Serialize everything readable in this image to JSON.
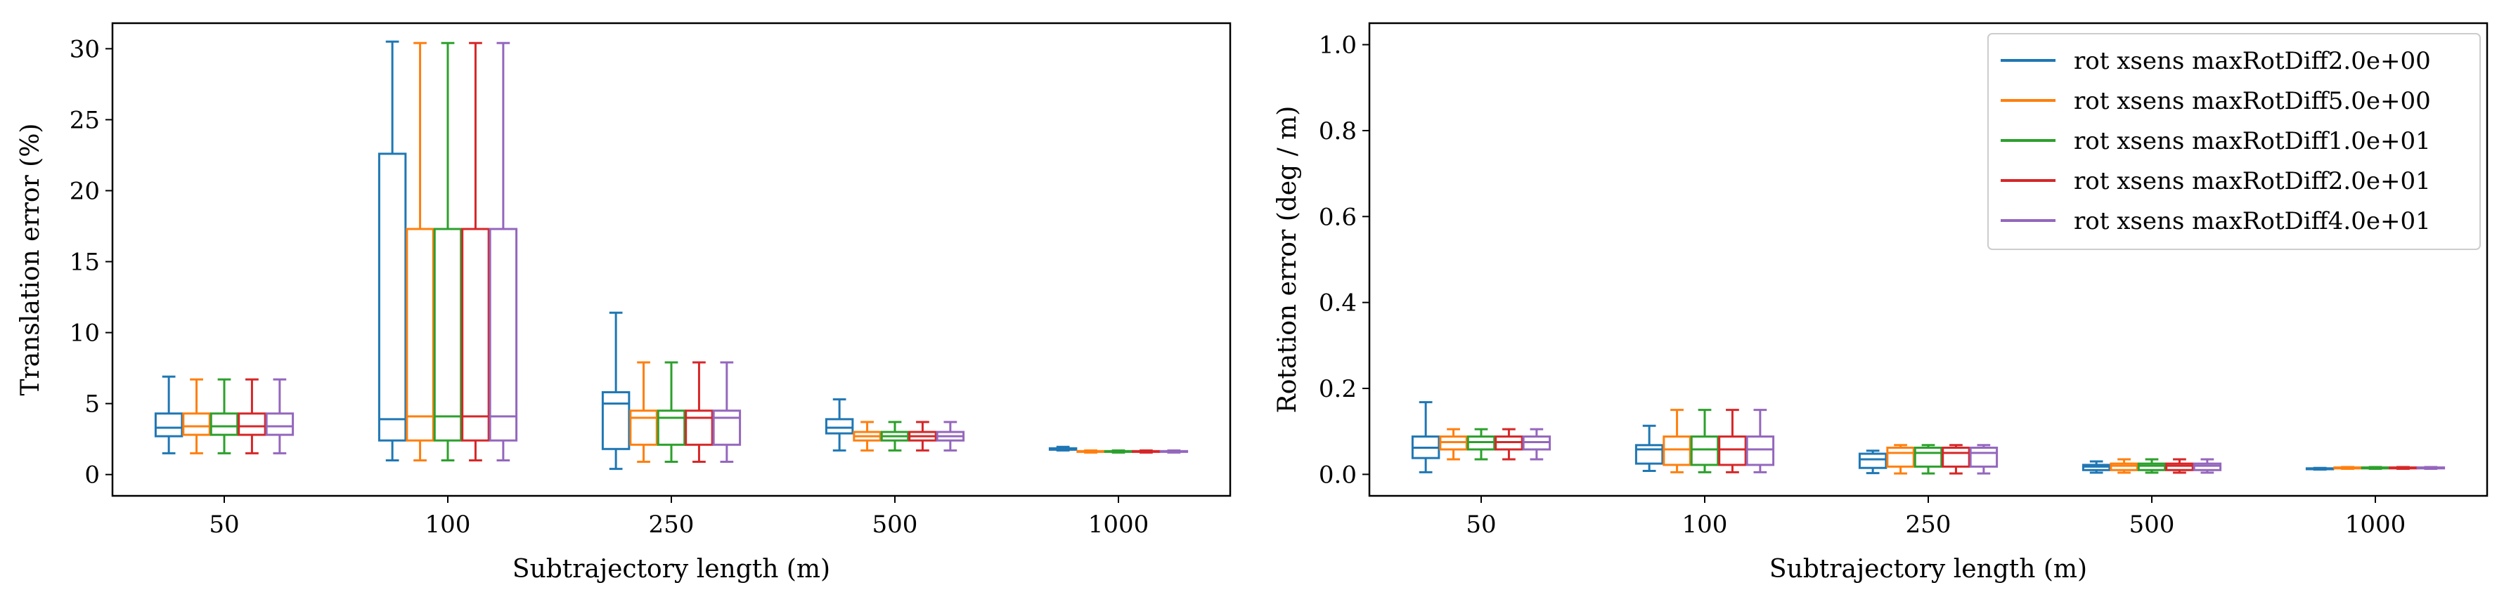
{
  "chart_data": [
    {
      "type": "box",
      "xlabel": "Subtrajectory length (m)",
      "ylabel": "Translation error (%)",
      "ylim": [
        -1.5,
        31.8
      ],
      "yticks": [
        0,
        5,
        10,
        15,
        20,
        25,
        30
      ],
      "categories": [
        "50",
        "100",
        "250",
        "500",
        "1000"
      ],
      "grid": false,
      "series": [
        {
          "name": "rot xsens maxRotDiff2.0e+00",
          "color": "#1f77b4",
          "boxes": [
            {
              "whislo": 1.5,
              "q1": 2.7,
              "med": 3.3,
              "q3": 4.3,
              "whishi": 6.9
            },
            {
              "whislo": 1.0,
              "q1": 2.4,
              "med": 3.9,
              "q3": 22.6,
              "whishi": 30.5
            },
            {
              "whislo": 0.4,
              "q1": 1.8,
              "med": 5.0,
              "q3": 5.8,
              "whishi": 11.4
            },
            {
              "whislo": 1.7,
              "q1": 2.9,
              "med": 3.3,
              "q3": 3.9,
              "whishi": 5.3
            },
            {
              "whislo": 1.7,
              "q1": 1.75,
              "med": 1.8,
              "q3": 1.85,
              "whishi": 1.95
            }
          ]
        },
        {
          "name": "rot xsens maxRotDiff5.0e+00",
          "color": "#ff7f0e",
          "boxes": [
            {
              "whislo": 1.5,
              "q1": 2.8,
              "med": 3.4,
              "q3": 4.3,
              "whishi": 6.7
            },
            {
              "whislo": 1.0,
              "q1": 2.4,
              "med": 4.1,
              "q3": 17.3,
              "whishi": 30.4
            },
            {
              "whislo": 0.9,
              "q1": 2.1,
              "med": 4.0,
              "q3": 4.5,
              "whishi": 7.9
            },
            {
              "whislo": 1.7,
              "q1": 2.4,
              "med": 2.7,
              "q3": 3.0,
              "whishi": 3.7
            },
            {
              "whislo": 1.55,
              "q1": 1.6,
              "med": 1.62,
              "q3": 1.65,
              "whishi": 1.7
            }
          ]
        },
        {
          "name": "rot xsens maxRotDiff1.0e+01",
          "color": "#2ca02c",
          "boxes": [
            {
              "whislo": 1.5,
              "q1": 2.8,
              "med": 3.4,
              "q3": 4.3,
              "whishi": 6.7
            },
            {
              "whislo": 1.0,
              "q1": 2.4,
              "med": 4.1,
              "q3": 17.3,
              "whishi": 30.4
            },
            {
              "whislo": 0.9,
              "q1": 2.1,
              "med": 4.0,
              "q3": 4.5,
              "whishi": 7.9
            },
            {
              "whislo": 1.7,
              "q1": 2.4,
              "med": 2.7,
              "q3": 3.0,
              "whishi": 3.7
            },
            {
              "whislo": 1.55,
              "q1": 1.6,
              "med": 1.62,
              "q3": 1.65,
              "whishi": 1.7
            }
          ]
        },
        {
          "name": "rot xsens maxRotDiff2.0e+01",
          "color": "#d62728",
          "boxes": [
            {
              "whislo": 1.5,
              "q1": 2.8,
              "med": 3.4,
              "q3": 4.3,
              "whishi": 6.7
            },
            {
              "whislo": 1.0,
              "q1": 2.4,
              "med": 4.1,
              "q3": 17.3,
              "whishi": 30.4
            },
            {
              "whislo": 0.9,
              "q1": 2.1,
              "med": 4.0,
              "q3": 4.5,
              "whishi": 7.9
            },
            {
              "whislo": 1.7,
              "q1": 2.4,
              "med": 2.7,
              "q3": 3.0,
              "whishi": 3.7
            },
            {
              "whislo": 1.55,
              "q1": 1.6,
              "med": 1.62,
              "q3": 1.65,
              "whishi": 1.7
            }
          ]
        },
        {
          "name": "rot xsens maxRotDiff4.0e+01",
          "color": "#9467bd",
          "boxes": [
            {
              "whislo": 1.5,
              "q1": 2.8,
              "med": 3.4,
              "q3": 4.3,
              "whishi": 6.7
            },
            {
              "whislo": 1.0,
              "q1": 2.4,
              "med": 4.1,
              "q3": 17.3,
              "whishi": 30.4
            },
            {
              "whislo": 0.9,
              "q1": 2.1,
              "med": 4.0,
              "q3": 4.5,
              "whishi": 7.9
            },
            {
              "whislo": 1.7,
              "q1": 2.4,
              "med": 2.7,
              "q3": 3.0,
              "whishi": 3.7
            },
            {
              "whislo": 1.55,
              "q1": 1.6,
              "med": 1.62,
              "q3": 1.65,
              "whishi": 1.7
            }
          ]
        }
      ]
    },
    {
      "type": "box",
      "xlabel": "Subtrajectory length (m)",
      "ylabel": "Rotation error (deg / m)",
      "ylim": [
        -0.05,
        1.05
      ],
      "yticks": [
        0.0,
        0.2,
        0.4,
        0.6,
        0.8,
        1.0
      ],
      "ytick_labels": [
        "0.0",
        "0.2",
        "0.4",
        "0.6",
        "0.8",
        "1.0"
      ],
      "categories": [
        "50",
        "100",
        "250",
        "500",
        "1000"
      ],
      "grid": false,
      "legend_position": "top-right",
      "series": [
        {
          "name": "rot xsens maxRotDiff2.0e+00",
          "color": "#1f77b4",
          "boxes": [
            {
              "whislo": 0.005,
              "q1": 0.038,
              "med": 0.062,
              "q3": 0.088,
              "whishi": 0.168
            },
            {
              "whislo": 0.008,
              "q1": 0.025,
              "med": 0.058,
              "q3": 0.068,
              "whishi": 0.113
            },
            {
              "whislo": 0.003,
              "q1": 0.015,
              "med": 0.035,
              "q3": 0.048,
              "whishi": 0.055
            },
            {
              "whislo": 0.004,
              "q1": 0.01,
              "med": 0.018,
              "q3": 0.022,
              "whishi": 0.03
            },
            {
              "whislo": 0.011,
              "q1": 0.012,
              "med": 0.013,
              "q3": 0.014,
              "whishi": 0.015
            }
          ]
        },
        {
          "name": "rot xsens maxRotDiff5.0e+00",
          "color": "#ff7f0e",
          "boxes": [
            {
              "whislo": 0.035,
              "q1": 0.058,
              "med": 0.075,
              "q3": 0.088,
              "whishi": 0.105
            },
            {
              "whislo": 0.005,
              "q1": 0.022,
              "med": 0.058,
              "q3": 0.088,
              "whishi": 0.15
            },
            {
              "whislo": 0.002,
              "q1": 0.018,
              "med": 0.05,
              "q3": 0.062,
              "whishi": 0.068
            },
            {
              "whislo": 0.004,
              "q1": 0.01,
              "med": 0.02,
              "q3": 0.025,
              "whishi": 0.035
            },
            {
              "whislo": 0.013,
              "q1": 0.014,
              "med": 0.015,
              "q3": 0.016,
              "whishi": 0.017
            }
          ]
        },
        {
          "name": "rot xsens maxRotDiff1.0e+01",
          "color": "#2ca02c",
          "boxes": [
            {
              "whislo": 0.035,
              "q1": 0.058,
              "med": 0.075,
              "q3": 0.088,
              "whishi": 0.105
            },
            {
              "whislo": 0.005,
              "q1": 0.022,
              "med": 0.058,
              "q3": 0.088,
              "whishi": 0.15
            },
            {
              "whislo": 0.002,
              "q1": 0.018,
              "med": 0.05,
              "q3": 0.062,
              "whishi": 0.068
            },
            {
              "whislo": 0.004,
              "q1": 0.01,
              "med": 0.02,
              "q3": 0.025,
              "whishi": 0.035
            },
            {
              "whislo": 0.013,
              "q1": 0.014,
              "med": 0.015,
              "q3": 0.016,
              "whishi": 0.017
            }
          ]
        },
        {
          "name": "rot xsens maxRotDiff2.0e+01",
          "color": "#d62728",
          "boxes": [
            {
              "whislo": 0.035,
              "q1": 0.058,
              "med": 0.075,
              "q3": 0.088,
              "whishi": 0.105
            },
            {
              "whislo": 0.005,
              "q1": 0.022,
              "med": 0.058,
              "q3": 0.088,
              "whishi": 0.15
            },
            {
              "whislo": 0.002,
              "q1": 0.018,
              "med": 0.05,
              "q3": 0.062,
              "whishi": 0.068
            },
            {
              "whislo": 0.004,
              "q1": 0.01,
              "med": 0.02,
              "q3": 0.025,
              "whishi": 0.035
            },
            {
              "whislo": 0.013,
              "q1": 0.014,
              "med": 0.015,
              "q3": 0.016,
              "whishi": 0.017
            }
          ]
        },
        {
          "name": "rot xsens maxRotDiff4.0e+01",
          "color": "#9467bd",
          "boxes": [
            {
              "whislo": 0.035,
              "q1": 0.058,
              "med": 0.075,
              "q3": 0.088,
              "whishi": 0.105
            },
            {
              "whislo": 0.005,
              "q1": 0.022,
              "med": 0.058,
              "q3": 0.088,
              "whishi": 0.15
            },
            {
              "whislo": 0.002,
              "q1": 0.018,
              "med": 0.05,
              "q3": 0.062,
              "whishi": 0.068
            },
            {
              "whislo": 0.004,
              "q1": 0.01,
              "med": 0.02,
              "q3": 0.025,
              "whishi": 0.035
            },
            {
              "whislo": 0.013,
              "q1": 0.014,
              "med": 0.015,
              "q3": 0.016,
              "whishi": 0.017
            }
          ]
        }
      ]
    }
  ]
}
